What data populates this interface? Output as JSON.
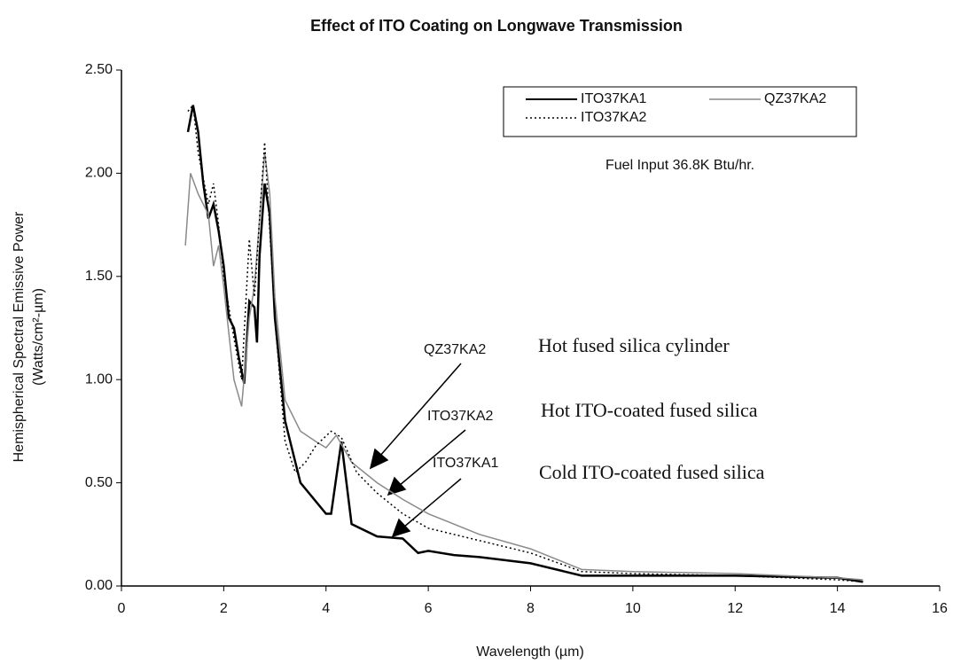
{
  "chart_data": {
    "type": "line",
    "title": "Effect of ITO Coating on Longwave Transmission",
    "xlabel": "Wavelength (µm)",
    "ylabel": [
      "Hemispherical Spectral Emissive Power",
      "(Watts/cm²-µm)"
    ],
    "xlim": [
      0,
      16
    ],
    "xticks": [
      0,
      2,
      4,
      6,
      8,
      10,
      12,
      14,
      16
    ],
    "ylim": [
      0,
      2.5
    ],
    "yticks": [
      {
        "value": 0,
        "label": "0.00"
      },
      {
        "value": 0.5,
        "label": "0.50"
      },
      {
        "value": 1,
        "label": "1.00"
      },
      {
        "value": 1.5,
        "label": "1.50"
      },
      {
        "value": 2,
        "label": "2.00"
      },
      {
        "value": 2.5,
        "label": "2.50"
      }
    ],
    "legend": "upper right",
    "series": [
      {
        "name": "ITO37KA1",
        "color": "#000000",
        "style": "solid",
        "x": [
          1.3,
          1.4,
          1.5,
          1.6,
          1.7,
          1.8,
          1.9,
          2.0,
          2.1,
          2.2,
          2.3,
          2.4,
          2.5,
          2.6,
          2.65,
          2.7,
          2.8,
          2.9,
          3.0,
          3.2,
          3.5,
          4.0,
          4.1,
          4.3,
          4.5,
          5.0,
          5.5,
          5.8,
          6.0,
          6.5,
          7.0,
          8.0,
          9.0,
          10.0,
          12.0,
          14.0,
          14.5
        ],
        "values": [
          2.2,
          2.33,
          2.2,
          1.95,
          1.78,
          1.85,
          1.72,
          1.55,
          1.3,
          1.25,
          1.1,
          0.98,
          1.38,
          1.35,
          1.18,
          1.6,
          1.95,
          1.8,
          1.3,
          0.8,
          0.5,
          0.35,
          0.35,
          0.7,
          0.3,
          0.24,
          0.23,
          0.16,
          0.17,
          0.15,
          0.14,
          0.11,
          0.05,
          0.05,
          0.05,
          0.04,
          0.02
        ]
      },
      {
        "name": "QZ37KA2",
        "color": "#8a8a8a",
        "style": "solid",
        "x": [
          1.25,
          1.35,
          1.5,
          1.7,
          1.8,
          1.9,
          2.0,
          2.2,
          2.35,
          2.5,
          2.6,
          2.8,
          2.9,
          3.0,
          3.2,
          3.5,
          3.8,
          4.0,
          4.2,
          4.5,
          5.0,
          5.5,
          6.0,
          7.0,
          8.0,
          9.0,
          10.0,
          12.0,
          14.0,
          14.5
        ],
        "values": [
          1.65,
          2.0,
          1.9,
          1.8,
          1.55,
          1.65,
          1.45,
          1.0,
          0.87,
          1.3,
          1.45,
          2.1,
          1.9,
          1.4,
          0.9,
          0.75,
          0.7,
          0.67,
          0.73,
          0.6,
          0.5,
          0.42,
          0.35,
          0.25,
          0.18,
          0.08,
          0.07,
          0.06,
          0.04,
          0.03
        ]
      },
      {
        "name": "ITO37KA2",
        "color": "#000000",
        "style": "dotted",
        "x": [
          1.3,
          1.4,
          1.5,
          1.7,
          1.8,
          1.9,
          2.0,
          2.2,
          2.35,
          2.5,
          2.6,
          2.8,
          3.0,
          3.2,
          3.4,
          3.6,
          3.8,
          4.1,
          4.3,
          4.6,
          5.0,
          5.5,
          6.0,
          7.0,
          8.0,
          9.0,
          10.0,
          12.0,
          14.0,
          14.5
        ],
        "values": [
          2.3,
          2.33,
          2.1,
          1.85,
          1.95,
          1.75,
          1.5,
          1.2,
          1.0,
          1.68,
          1.4,
          2.15,
          1.3,
          0.7,
          0.55,
          0.6,
          0.68,
          0.75,
          0.72,
          0.55,
          0.45,
          0.35,
          0.28,
          0.22,
          0.16,
          0.07,
          0.06,
          0.05,
          0.03,
          0.02
        ]
      }
    ],
    "annotations": [
      "Fuel Input 36.8K Btu/hr.",
      "QZ37KA2",
      "ITO37KA2",
      "ITO37KA1",
      "Hot fused silica cylinder",
      "Hot ITO-coated fused silica",
      "Cold ITO-coated fused silica"
    ]
  }
}
